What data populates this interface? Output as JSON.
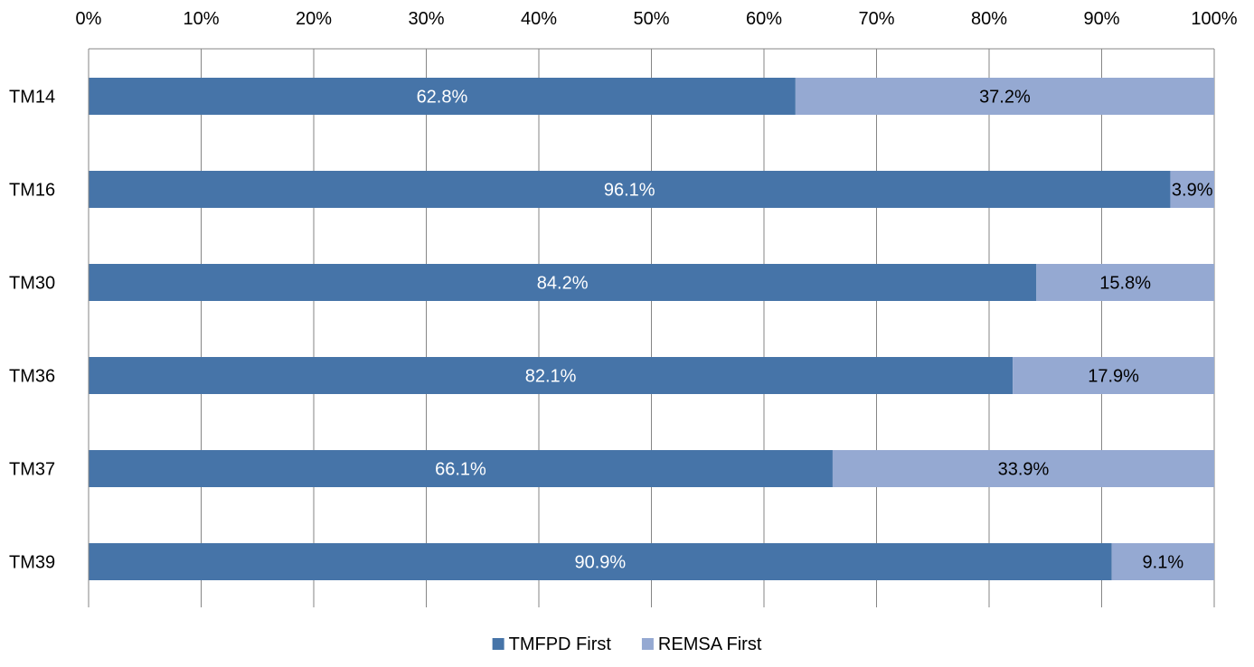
{
  "chart_data": {
    "type": "bar",
    "orientation": "horizontal",
    "stacked": "percent",
    "categories": [
      "TM14",
      "TM16",
      "TM30",
      "TM36",
      "TM37",
      "TM39"
    ],
    "series": [
      {
        "name": "TMFPD First",
        "color": "#4674A8",
        "label_color": "#ffffff",
        "values": [
          62.8,
          96.1,
          84.2,
          82.1,
          66.1,
          90.9
        ],
        "labels": [
          "62.8%",
          "96.1%",
          "84.2%",
          "82.1%",
          "66.1%",
          "90.9%"
        ]
      },
      {
        "name": "REMSA First",
        "color": "#95A9D2",
        "label_color": "#000000",
        "values": [
          37.2,
          3.9,
          15.8,
          17.9,
          33.9,
          9.1
        ],
        "labels": [
          "37.2%",
          "3.9%",
          "15.8%",
          "17.9%",
          "33.9%",
          "9.1%"
        ]
      }
    ],
    "xlim": [
      0,
      100
    ],
    "xticks": [
      0,
      10,
      20,
      30,
      40,
      50,
      60,
      70,
      80,
      90,
      100
    ],
    "xtick_labels": [
      "0%",
      "10%",
      "20%",
      "30%",
      "40%",
      "50%",
      "60%",
      "70%",
      "80%",
      "90%",
      "100%"
    ],
    "x_axis_position": "top",
    "grid": true,
    "legend_position": "bottom",
    "title": "",
    "xlabel": "",
    "ylabel": ""
  }
}
